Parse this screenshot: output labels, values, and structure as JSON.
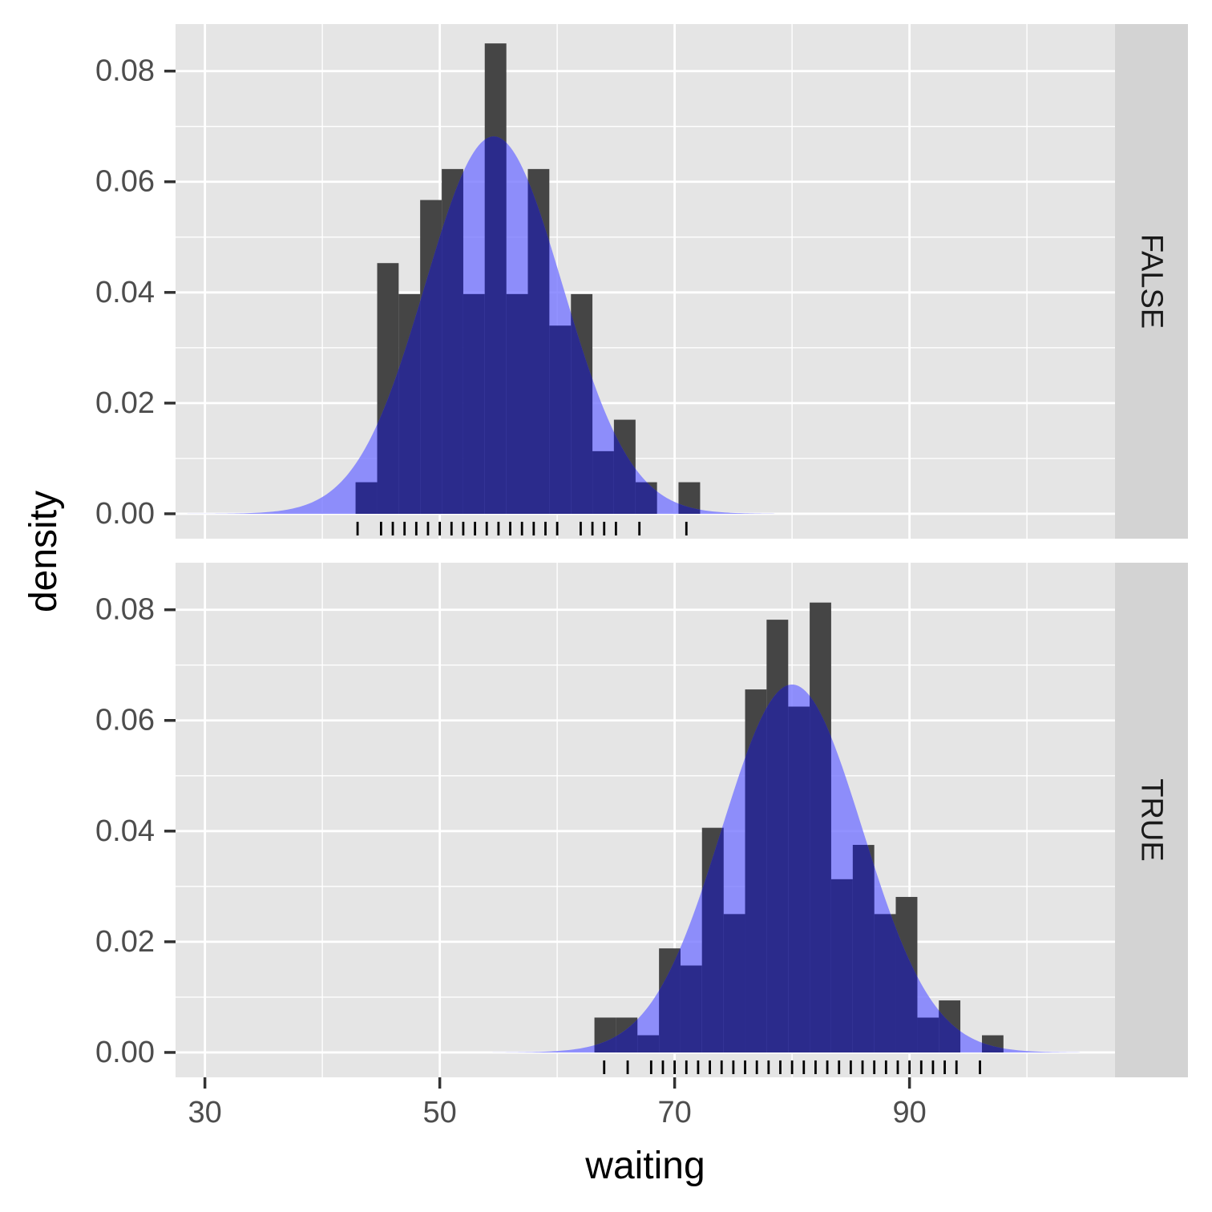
{
  "chart_data": {
    "type": "histogram",
    "xlabel": "waiting",
    "ylabel": "density",
    "xlim": [
      27.5,
      107.5
    ],
    "ylim": [
      -0.0045,
      0.0885
    ],
    "x_ticks": [
      30,
      50,
      70,
      90
    ],
    "y_ticks": [
      0.0,
      0.02,
      0.04,
      0.06,
      0.08
    ],
    "y_tick_labels": [
      "0.00",
      "0.02",
      "0.04",
      "0.06",
      "0.08"
    ],
    "grid": true,
    "bin_width": 1.8333,
    "colors": {
      "panel_background": "#e5e5e5",
      "grid_line": "#ffffff",
      "strip_background": "#d3d3d3",
      "bar": "#454545",
      "density_fill": "#7777ff",
      "density_opacity": 0.8,
      "overlap": "#2b2b8c",
      "rug": "#000000"
    },
    "panels": [
      {
        "facet": "FALSE",
        "bars": [
          {
            "x0": 42.83,
            "x1": 44.67,
            "density": 0.0057
          },
          {
            "x0": 44.67,
            "x1": 46.5,
            "density": 0.0453
          },
          {
            "x0": 46.5,
            "x1": 48.33,
            "density": 0.0397
          },
          {
            "x0": 48.33,
            "x1": 50.17,
            "density": 0.0567
          },
          {
            "x0": 50.17,
            "x1": 52.0,
            "density": 0.0623
          },
          {
            "x0": 52.0,
            "x1": 53.83,
            "density": 0.0397
          },
          {
            "x0": 53.83,
            "x1": 55.67,
            "density": 0.085
          },
          {
            "x0": 55.67,
            "x1": 57.5,
            "density": 0.0397
          },
          {
            "x0": 57.5,
            "x1": 59.33,
            "density": 0.0623
          },
          {
            "x0": 59.33,
            "x1": 61.17,
            "density": 0.034
          },
          {
            "x0": 61.17,
            "x1": 63.0,
            "density": 0.0397
          },
          {
            "x0": 63.0,
            "x1": 64.83,
            "density": 0.0113
          },
          {
            "x0": 64.83,
            "x1": 66.67,
            "density": 0.017
          },
          {
            "x0": 66.67,
            "x1": 68.5,
            "density": 0.0057
          },
          {
            "x0": 68.5,
            "x1": 70.33,
            "density": 0.0
          },
          {
            "x0": 70.33,
            "x1": 72.17,
            "density": 0.0057
          }
        ],
        "normal_curve": {
          "mean": 54.6,
          "sd": 5.85,
          "x_from": 28.5,
          "x_to": 78.5
        },
        "rug": [
          43,
          45,
          46,
          47,
          48,
          49,
          50,
          51,
          52,
          53,
          54,
          55,
          56,
          57,
          58,
          59,
          60,
          62,
          63,
          64,
          65,
          67,
          71
        ]
      },
      {
        "facet": "TRUE",
        "bars": [
          {
            "x0": 63.17,
            "x1": 65.0,
            "density": 0.0063
          },
          {
            "x0": 65.0,
            "x1": 66.83,
            "density": 0.0063
          },
          {
            "x0": 66.83,
            "x1": 68.67,
            "density": 0.0031
          },
          {
            "x0": 68.67,
            "x1": 70.5,
            "density": 0.0188
          },
          {
            "x0": 70.5,
            "x1": 72.33,
            "density": 0.0157
          },
          {
            "x0": 72.33,
            "x1": 74.17,
            "density": 0.0406
          },
          {
            "x0": 74.17,
            "x1": 76.0,
            "density": 0.025
          },
          {
            "x0": 76.0,
            "x1": 77.83,
            "density": 0.0656
          },
          {
            "x0": 77.83,
            "x1": 79.67,
            "density": 0.0782
          },
          {
            "x0": 79.67,
            "x1": 81.5,
            "density": 0.0625
          },
          {
            "x0": 81.5,
            "x1": 83.33,
            "density": 0.0813
          },
          {
            "x0": 83.33,
            "x1": 85.17,
            "density": 0.0313
          },
          {
            "x0": 85.17,
            "x1": 87.0,
            "density": 0.0375
          },
          {
            "x0": 87.0,
            "x1": 88.83,
            "density": 0.025
          },
          {
            "x0": 88.83,
            "x1": 90.67,
            "density": 0.0281
          },
          {
            "x0": 90.67,
            "x1": 92.5,
            "density": 0.0063
          },
          {
            "x0": 92.5,
            "x1": 94.33,
            "density": 0.0094
          },
          {
            "x0": 94.33,
            "x1": 96.17,
            "density": 0.0
          },
          {
            "x0": 96.17,
            "x1": 98.0,
            "density": 0.0031
          }
        ],
        "normal_curve": {
          "mean": 80.0,
          "sd": 6.0,
          "x_from": 54.5,
          "x_to": 104.5
        },
        "rug": [
          64,
          66,
          68,
          69,
          70,
          71,
          72,
          73,
          74,
          75,
          76,
          77,
          78,
          79,
          80,
          81,
          82,
          83,
          84,
          85,
          86,
          87,
          88,
          89,
          90,
          91,
          92,
          93,
          94,
          96
        ]
      }
    ]
  }
}
